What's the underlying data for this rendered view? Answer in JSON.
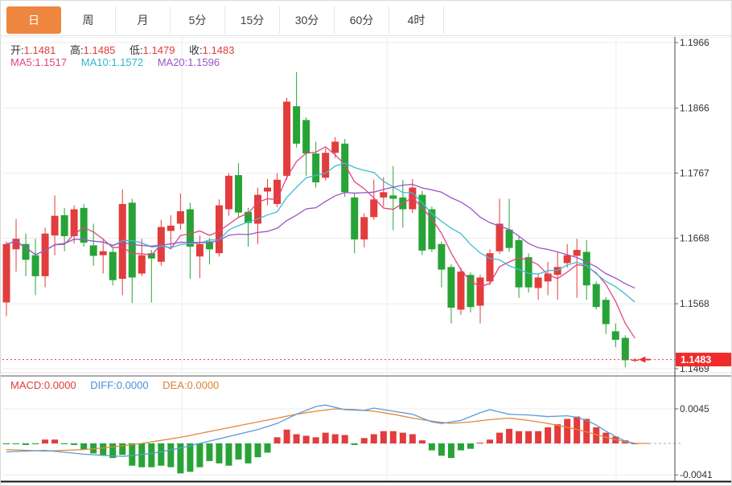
{
  "toolbar": {
    "tabs": [
      {
        "label": "日",
        "active": true
      },
      {
        "label": "周",
        "active": false
      },
      {
        "label": "月",
        "active": false
      },
      {
        "label": "5分",
        "active": false
      },
      {
        "label": "15分",
        "active": false
      },
      {
        "label": "30分",
        "active": false
      },
      {
        "label": "60分",
        "active": false
      },
      {
        "label": "4时",
        "active": false
      }
    ]
  },
  "main_chart": {
    "ohlc_readout": {
      "open_label": "开:",
      "open_value": "1.1481",
      "high_label": "高:",
      "high_value": "1.1485",
      "low_label": "低:",
      "low_value": "1.1479",
      "close_label": "收:",
      "close_value": "1.1483"
    },
    "ma_readout": {
      "ma5_label": "MA5:",
      "ma5_value": "1.1517",
      "ma10_label": "MA10:",
      "ma10_value": "1.1572",
      "ma20_label": "MA20:",
      "ma20_value": "1.1596"
    },
    "y_axis_ticks": [
      "1.1966",
      "1.1866",
      "1.1767",
      "1.1668",
      "1.1568",
      "1.1469"
    ],
    "last_price_label": "1.1483"
  },
  "macd_panel": {
    "readout": {
      "macd_label": "MACD:",
      "macd_value": "0.0000",
      "diff_label": "DIFF:",
      "diff_value": "0.0000",
      "dea_label": "DEA:",
      "dea_value": "0.0000"
    },
    "y_axis_ticks": [
      "0.0045",
      "-0.0041"
    ]
  },
  "colors": {
    "up": "#e23c3c",
    "down": "#28a337",
    "ma5": "#e0447e",
    "ma10": "#3cbcd4",
    "ma20": "#9a55c8",
    "diff_line": "#5b9bd5",
    "dea_line": "#e2883a",
    "accent_tab": "#ef8640",
    "price_flag_bg": "#f12b2b",
    "dotted_line": "#f03030",
    "grid": "#ececec",
    "axis_text": "#333333"
  },
  "chart_data": {
    "type": "candlestick",
    "title": "",
    "main": {
      "ylim": [
        1.1455,
        1.1975
      ],
      "y_ticks": [
        1.1966,
        1.1866,
        1.1767,
        1.1668,
        1.1568,
        1.1469
      ],
      "last_price": 1.1483,
      "ma_periods": [
        5,
        10,
        20
      ],
      "ohlc": [
        [
          1.157,
          1.1663,
          1.1549,
          1.1659
        ],
        [
          1.1651,
          1.1697,
          1.1617,
          1.1667
        ],
        [
          1.1659,
          1.1675,
          1.161,
          1.1635
        ],
        [
          1.1642,
          1.1667,
          1.1581,
          1.161
        ],
        [
          1.161,
          1.1684,
          1.1593,
          1.1675
        ],
        [
          1.1672,
          1.1733,
          1.1642,
          1.1702
        ],
        [
          1.1703,
          1.1714,
          1.1648,
          1.1671
        ],
        [
          1.1671,
          1.1718,
          1.166,
          1.1712
        ],
        [
          1.1714,
          1.172,
          1.1655,
          1.1661
        ],
        [
          1.1657,
          1.169,
          1.1626,
          1.1641
        ],
        [
          1.1642,
          1.1667,
          1.1614,
          1.1648
        ],
        [
          1.1647,
          1.1652,
          1.1596,
          1.1604
        ],
        [
          1.1606,
          1.1742,
          1.1581,
          1.172
        ],
        [
          1.1722,
          1.1728,
          1.1569,
          1.1608
        ],
        [
          1.1614,
          1.1667,
          1.161,
          1.1642
        ],
        [
          1.1645,
          1.165,
          1.157,
          1.1637
        ],
        [
          1.1632,
          1.1696,
          1.1626,
          1.1685
        ],
        [
          1.1679,
          1.1703,
          1.1654,
          1.1687
        ],
        [
          1.169,
          1.1736,
          1.1681,
          1.1709
        ],
        [
          1.1712,
          1.1722,
          1.1606,
          1.1655
        ],
        [
          1.164,
          1.1672,
          1.1607,
          1.1659
        ],
        [
          1.1663,
          1.1668,
          1.1628,
          1.1651
        ],
        [
          1.1645,
          1.1727,
          1.164,
          1.1718
        ],
        [
          1.1712,
          1.1767,
          1.1702,
          1.1763
        ],
        [
          1.1764,
          1.1782,
          1.17,
          1.1707
        ],
        [
          1.1708,
          1.1714,
          1.1655,
          1.1691
        ],
        [
          1.169,
          1.1745,
          1.1659,
          1.1734
        ],
        [
          1.1739,
          1.1758,
          1.1718,
          1.1745
        ],
        [
          1.172,
          1.1767,
          1.1715,
          1.1757
        ],
        [
          1.1763,
          1.1882,
          1.1757,
          1.1876
        ],
        [
          1.1869,
          1.1921,
          1.1806,
          1.1812
        ],
        [
          1.1848,
          1.1852,
          1.1763,
          1.1797
        ],
        [
          1.1797,
          1.1815,
          1.1745,
          1.1753
        ],
        [
          1.176,
          1.1805,
          1.1756,
          1.1798
        ],
        [
          1.1798,
          1.1822,
          1.179,
          1.1815
        ],
        [
          1.1812,
          1.1819,
          1.1731,
          1.1738
        ],
        [
          1.173,
          1.1736,
          1.1645,
          1.1666
        ],
        [
          1.1666,
          1.1706,
          1.1654,
          1.17
        ],
        [
          1.17,
          1.1757,
          1.1696,
          1.1727
        ],
        [
          1.173,
          1.1761,
          1.1716,
          1.1738
        ],
        [
          1.1733,
          1.1778,
          1.168,
          1.1728
        ],
        [
          1.173,
          1.1757,
          1.1684,
          1.1712
        ],
        [
          1.1712,
          1.1758,
          1.1706,
          1.1745
        ],
        [
          1.1734,
          1.174,
          1.1642,
          1.1649
        ],
        [
          1.1712,
          1.1716,
          1.1647,
          1.1651
        ],
        [
          1.1659,
          1.1663,
          1.1593,
          1.162
        ],
        [
          1.1624,
          1.1628,
          1.1538,
          1.1562
        ],
        [
          1.1559,
          1.1623,
          1.1551,
          1.1617
        ],
        [
          1.1612,
          1.1616,
          1.1555,
          1.1563
        ],
        [
          1.1565,
          1.1612,
          1.1538,
          1.1608
        ],
        [
          1.1602,
          1.1651,
          1.1596,
          1.1645
        ],
        [
          1.1648,
          1.1728,
          1.1644,
          1.169
        ],
        [
          1.1681,
          1.1728,
          1.1647,
          1.1653
        ],
        [
          1.1665,
          1.167,
          1.1577,
          1.1593
        ],
        [
          1.1639,
          1.1645,
          1.1585,
          1.1593
        ],
        [
          1.1592,
          1.1613,
          1.1574,
          1.1608
        ],
        [
          1.1602,
          1.1632,
          1.1581,
          1.1614
        ],
        [
          1.1612,
          1.1647,
          1.1574,
          1.1624
        ],
        [
          1.163,
          1.1659,
          1.1623,
          1.1642
        ],
        [
          1.1641,
          1.1667,
          1.1577,
          1.165
        ],
        [
          1.1647,
          1.1665,
          1.1574,
          1.1596
        ],
        [
          1.1598,
          1.1602,
          1.1559,
          1.1563
        ],
        [
          1.1574,
          1.1578,
          1.1522,
          1.1537
        ],
        [
          1.1526,
          1.1538,
          1.1502,
          1.1513
        ],
        [
          1.1516,
          1.152,
          1.1471,
          1.1482
        ],
        [
          1.1481,
          1.1485,
          1.1479,
          1.1483
        ]
      ]
    },
    "macd": {
      "type": "bar",
      "ylim": [
        -0.005,
        0.0052
      ],
      "y_ticks": [
        0.0045,
        -0.0041
      ],
      "histogram": [
        -0.0001,
        -0.0001,
        -0.0002,
        -0.0001,
        0.0005,
        0.0005,
        -0.0001,
        -0.0002,
        -0.0008,
        -0.0013,
        -0.0016,
        -0.0019,
        -0.0015,
        -0.0029,
        -0.0031,
        -0.0031,
        -0.0029,
        -0.0031,
        -0.0039,
        -0.0037,
        -0.0031,
        -0.0023,
        -0.0026,
        -0.0029,
        -0.0021,
        -0.0026,
        -0.0018,
        -0.0012,
        0.0008,
        0.0018,
        0.0012,
        0.001,
        0.0008,
        0.0014,
        0.0012,
        0.0011,
        -0.0002,
        0.0007,
        0.0012,
        0.0016,
        0.0016,
        0.0014,
        0.0012,
        0.0004,
        -0.0009,
        -0.0016,
        -0.0019,
        -0.0009,
        -0.0007,
        0.0001,
        0.0005,
        0.0014,
        0.0019,
        0.0016,
        0.0016,
        0.0016,
        0.0021,
        0.0025,
        0.0032,
        0.0035,
        0.0032,
        0.0021,
        0.0014,
        0.0009,
        0.0004,
        0.0
      ],
      "diff_keypoints": [
        [
          0,
          -0.0011
        ],
        [
          4,
          -0.0009
        ],
        [
          8,
          -0.0014
        ],
        [
          12,
          -0.0017
        ],
        [
          15,
          -0.0013
        ],
        [
          18,
          -0.0006
        ],
        [
          20,
          0.0
        ],
        [
          22,
          0.0006
        ],
        [
          24,
          0.0012
        ],
        [
          26,
          0.0018
        ],
        [
          28,
          0.0026
        ],
        [
          30,
          0.0038
        ],
        [
          32,
          0.0048
        ],
        [
          33,
          0.005
        ],
        [
          35,
          0.0044
        ],
        [
          37,
          0.0043
        ],
        [
          38,
          0.0046
        ],
        [
          40,
          0.0042
        ],
        [
          42,
          0.0038
        ],
        [
          44,
          0.0028
        ],
        [
          45,
          0.0026
        ],
        [
          47,
          0.003
        ],
        [
          49,
          0.004
        ],
        [
          50,
          0.0044
        ],
        [
          51,
          0.0041
        ],
        [
          52,
          0.0038
        ],
        [
          54,
          0.0037
        ],
        [
          56,
          0.0035
        ],
        [
          58,
          0.0036
        ],
        [
          59,
          0.0034
        ],
        [
          60,
          0.003
        ],
        [
          61,
          0.0024
        ],
        [
          62,
          0.0016
        ],
        [
          63,
          0.0009
        ],
        [
          64,
          0.0003
        ],
        [
          65,
          0.0
        ]
      ],
      "dea_keypoints": [
        [
          0,
          -0.0008
        ],
        [
          4,
          -0.001
        ],
        [
          8,
          -0.0008
        ],
        [
          10,
          -0.0006
        ],
        [
          12,
          -0.0003
        ],
        [
          14,
          0.0
        ],
        [
          16,
          0.0004
        ],
        [
          18,
          0.0008
        ],
        [
          20,
          0.0013
        ],
        [
          22,
          0.0018
        ],
        [
          24,
          0.0023
        ],
        [
          26,
          0.0028
        ],
        [
          28,
          0.0033
        ],
        [
          30,
          0.0038
        ],
        [
          32,
          0.0042
        ],
        [
          34,
          0.0045
        ],
        [
          36,
          0.0044
        ],
        [
          38,
          0.0042
        ],
        [
          40,
          0.0038
        ],
        [
          42,
          0.0033
        ],
        [
          44,
          0.0029
        ],
        [
          46,
          0.0026
        ],
        [
          48,
          0.0028
        ],
        [
          50,
          0.0031
        ],
        [
          52,
          0.0033
        ],
        [
          54,
          0.003
        ],
        [
          56,
          0.0026
        ],
        [
          58,
          0.0021
        ],
        [
          60,
          0.0015
        ],
        [
          62,
          0.0008
        ],
        [
          63,
          0.0005
        ],
        [
          64,
          0.0002
        ],
        [
          65,
          0.0
        ]
      ]
    }
  }
}
